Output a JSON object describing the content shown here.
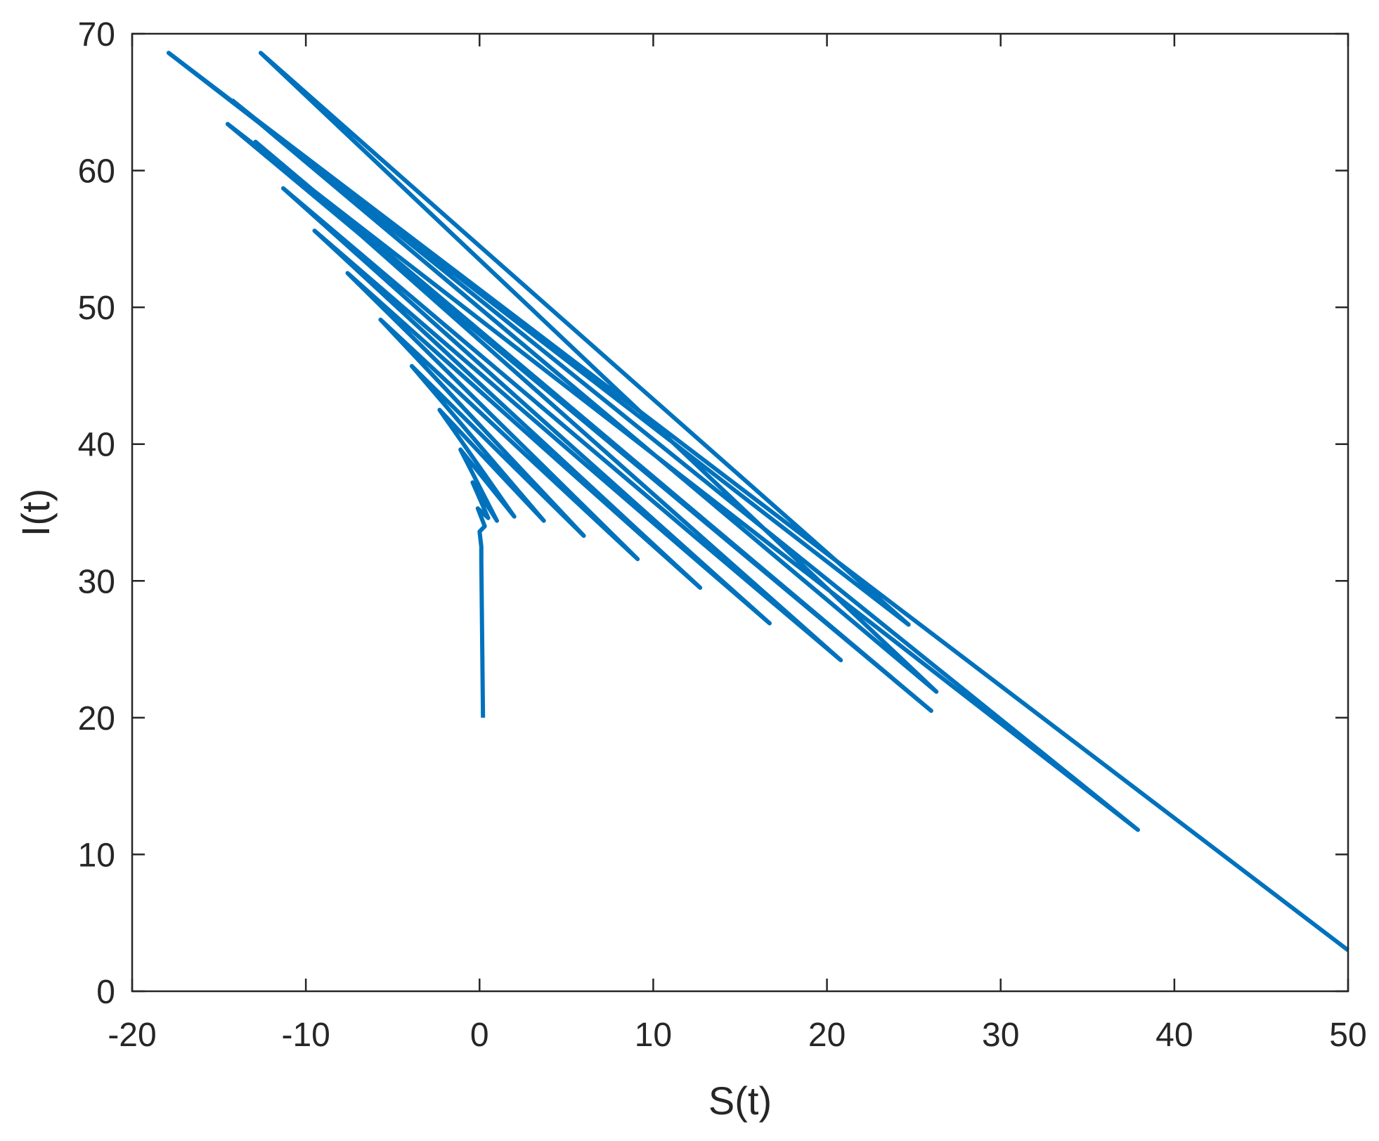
{
  "chart_data": {
    "type": "line",
    "title": "",
    "xlabel": "S(t)",
    "ylabel": "I(t)",
    "xlim": [
      -20,
      50
    ],
    "ylim": [
      0,
      70
    ],
    "xticks": [
      "-20",
      "-10",
      "0",
      "10",
      "20",
      "30",
      "40",
      "50"
    ],
    "yticks": [
      "0",
      "10",
      "20",
      "30",
      "40",
      "50",
      "60",
      "70"
    ],
    "grid": false,
    "legend": "none",
    "line_color": "#0072BD",
    "series": [
      {
        "x": [
          0.2,
          0.1,
          0.1,
          0.0,
          0.3,
          -0.1,
          0.5,
          -0.4,
          1.0,
          -1.1,
          2.0,
          -2.3,
          3.7,
          -3.9,
          6.0,
          -5.7,
          9.1,
          -7.6,
          12.7,
          -9.5,
          16.7,
          -11.3,
          20.8,
          -12.9,
          26.0,
          -14.5,
          37.9,
          -14.2,
          26.3,
          -12.6,
          24.7,
          -17.9,
          50.0
        ],
        "y": [
          20.0,
          31.5,
          32.5,
          33.6,
          34.0,
          35.3,
          34.6,
          37.2,
          34.4,
          39.6,
          34.7,
          42.5,
          34.4,
          45.7,
          33.3,
          49.1,
          31.6,
          52.5,
          29.5,
          55.6,
          26.9,
          58.7,
          24.2,
          62.1,
          20.5,
          63.4,
          11.8,
          65.1,
          21.9,
          68.6,
          26.8,
          68.6,
          3.0
        ]
      }
    ]
  }
}
